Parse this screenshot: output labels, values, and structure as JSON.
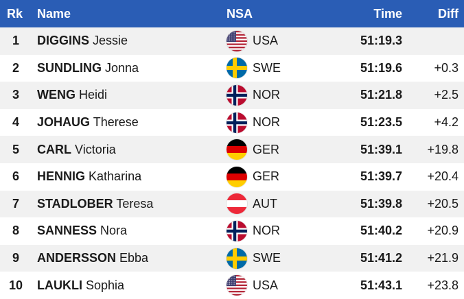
{
  "header": {
    "rk": "Rk",
    "name": "Name",
    "nsa": "NSA",
    "time": "Time",
    "diff": "Diff"
  },
  "rows": [
    {
      "rk": "1",
      "surname": "DIGGINS",
      "given": "Jessie",
      "nsa": "USA",
      "flag": "usa-flag-icon",
      "time": "51:19.3",
      "diff": ""
    },
    {
      "rk": "2",
      "surname": "SUNDLING",
      "given": "Jonna",
      "nsa": "SWE",
      "flag": "swe-flag-icon",
      "time": "51:19.6",
      "diff": "+0.3"
    },
    {
      "rk": "3",
      "surname": "WENG",
      "given": "Heidi",
      "nsa": "NOR",
      "flag": "nor-flag-icon",
      "time": "51:21.8",
      "diff": "+2.5"
    },
    {
      "rk": "4",
      "surname": "JOHAUG",
      "given": "Therese",
      "nsa": "NOR",
      "flag": "nor-flag-icon",
      "time": "51:23.5",
      "diff": "+4.2"
    },
    {
      "rk": "5",
      "surname": "CARL",
      "given": "Victoria",
      "nsa": "GER",
      "flag": "ger-flag-icon",
      "time": "51:39.1",
      "diff": "+19.8"
    },
    {
      "rk": "6",
      "surname": "HENNIG",
      "given": "Katharina",
      "nsa": "GER",
      "flag": "ger-flag-icon",
      "time": "51:39.7",
      "diff": "+20.4"
    },
    {
      "rk": "7",
      "surname": "STADLOBER",
      "given": "Teresa",
      "nsa": "AUT",
      "flag": "aut-flag-icon",
      "time": "51:39.8",
      "diff": "+20.5"
    },
    {
      "rk": "8",
      "surname": "SANNESS",
      "given": "Nora",
      "nsa": "NOR",
      "flag": "nor-flag-icon",
      "time": "51:40.2",
      "diff": "+20.9"
    },
    {
      "rk": "9",
      "surname": "ANDERSSON",
      "given": "Ebba",
      "nsa": "SWE",
      "flag": "swe-flag-icon",
      "time": "51:41.2",
      "diff": "+21.9"
    },
    {
      "rk": "10",
      "surname": "LAUKLI",
      "given": "Sophia",
      "nsa": "USA",
      "flag": "usa-flag-icon",
      "time": "51:43.1",
      "diff": "+23.8"
    }
  ],
  "colors": {
    "header_bg": "#2a5db5",
    "row_alt_bg": "#f1f1f1"
  }
}
